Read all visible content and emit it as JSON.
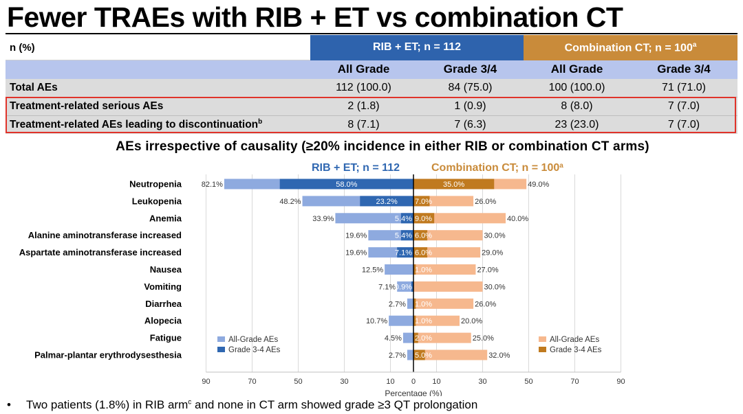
{
  "title": "Fewer TRAEs with RIB + ET vs combination CT",
  "table": {
    "corner": "n (%)",
    "group1": "RIB + ET; n = 112",
    "group2": "Combination CT; n = 100",
    "group2_sup": "a",
    "col_headers": [
      "All Grade",
      "Grade 3/4",
      "All Grade",
      "Grade 3/4"
    ],
    "rows": [
      {
        "label": "Total AEs",
        "sup": "",
        "cells": [
          "112 (100.0)",
          "84 (75.0)",
          "100 (100.0)",
          "71 (71.0)"
        ]
      },
      {
        "label": "Treatment-related serious AEs",
        "sup": "",
        "cells": [
          "2 (1.8)",
          "1 (0.9)",
          "8 (8.0)",
          "7 (7.0)"
        ]
      },
      {
        "label": "Treatment-related AEs leading to discontinuation",
        "sup": "b",
        "cells": [
          "8 (7.1)",
          "7 (6.3)",
          "23 (23.0)",
          "7 (7.0)"
        ]
      }
    ]
  },
  "chart_data": {
    "type": "bar",
    "title": "AEs irrespective of causality (≥20% incidence in either RIB or combination CT arms)",
    "left_arm_label": "RIB + ET; n = 112",
    "right_arm_label": "Combination CT; n = 100",
    "right_arm_sup": "a",
    "xlabel": "Percentage (%)",
    "xlim": [
      -90,
      90
    ],
    "ticks": [
      "90",
      "70",
      "50",
      "30",
      "10",
      "0",
      "10",
      "30",
      "50",
      "70",
      "90"
    ],
    "tick_values": [
      -90,
      -70,
      -50,
      -30,
      -10,
      0,
      10,
      30,
      50,
      70,
      90
    ],
    "categories": [
      "Neutropenia",
      "Leukopenia",
      "Anemia",
      "Alanine aminotransferase increased",
      "Aspartate aminotransferase increased",
      "Nausea",
      "Vomiting",
      "Diarrhea",
      "Alopecia",
      "Fatigue",
      "Palmar-plantar erythrodysesthesia"
    ],
    "series": [
      {
        "name": "RIB All-Grade AEs",
        "values": [
          82.1,
          48.2,
          33.9,
          19.6,
          19.6,
          12.5,
          7.1,
          2.7,
          10.7,
          4.5,
          2.7
        ],
        "labels": [
          "82.1%",
          "48.2%",
          "33.9%",
          "19.6%",
          "19.6%",
          "12.5%",
          "7.1%",
          "2.7%",
          "10.7%",
          "4.5%",
          "2.7%"
        ]
      },
      {
        "name": "RIB Grade 3-4 AEs",
        "values": [
          58.0,
          23.2,
          5.4,
          5.4,
          7.1,
          0,
          0.9,
          0,
          0,
          0,
          0
        ],
        "labels": [
          "58.0%",
          "23.2%",
          "5.4%",
          "5.4%",
          "7.1%",
          "",
          "0.9%",
          "",
          "",
          "",
          ""
        ]
      },
      {
        "name": "CT All-Grade AEs",
        "values": [
          49.0,
          26.0,
          40.0,
          30.0,
          29.0,
          27.0,
          30.0,
          26.0,
          20.0,
          25.0,
          32.0
        ],
        "labels": [
          "49.0%",
          "26.0%",
          "40.0%",
          "30.0%",
          "29.0%",
          "27.0%",
          "30.0%",
          "26.0%",
          "20.0%",
          "25.0%",
          "32.0%"
        ]
      },
      {
        "name": "CT Grade 3-4 AEs",
        "values": [
          35.0,
          7.0,
          9.0,
          6.0,
          6.0,
          1.0,
          0,
          1.0,
          1.0,
          2.0,
          5.0
        ],
        "labels": [
          "35.0%",
          "7.0%",
          "9.0%",
          "6.0%",
          "6.0%",
          "1.0%",
          "",
          "1.0%",
          "1.0%",
          "2.0%",
          "5.0%"
        ]
      }
    ],
    "legend_left": [
      "All-Grade AEs",
      "Grade 3-4 AEs"
    ],
    "legend_right": [
      "All-Grade AEs",
      "Grade 3-4 AEs"
    ],
    "colors": {
      "rib_all": "#8eaadf",
      "rib_g34": "#2f67b1",
      "ct_all": "#f6b88e",
      "ct_g34": "#c07a1f",
      "rib_label": "#2f67b1",
      "ct_label": "#c98b3a",
      "grid": "#d9d9d9"
    }
  },
  "footnote": {
    "bullet": "•",
    "text_before": "Two patients (1.8%) in RIB arm",
    "sup": "c",
    "text_after": " and none in CT arm showed grade ≥3 QT prolongation"
  }
}
